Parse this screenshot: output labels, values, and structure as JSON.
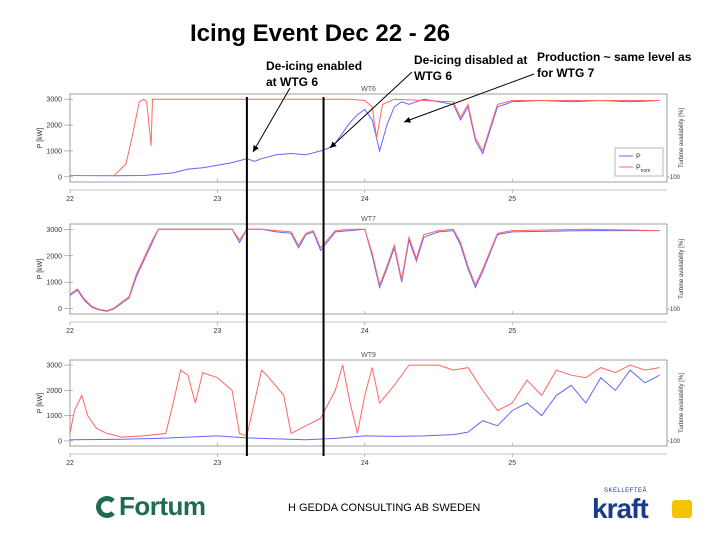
{
  "slide": {
    "title": "Icing Event Dec 22 - 26",
    "footer": "H GEDDA CONSULTING AB SWEDEN",
    "annotations": [
      {
        "lines": [
          "De-icing enabled",
          "at WTG 6"
        ]
      },
      {
        "lines": [
          "De-icing disabled at",
          "WTG 6"
        ]
      },
      {
        "lines": [
          "Production ~ same level as",
          "for WTG 7"
        ]
      }
    ],
    "logos": {
      "left": "Fortum",
      "right_small": "SKELLEFTEÅ",
      "right_big": "kraft"
    },
    "colors": {
      "P": "#6666ff",
      "Pnom": "#ff6666",
      "axis": "#888888",
      "marker": "#000000",
      "fortum": "#1d6c4c",
      "kraft": "#1a3a8a"
    }
  },
  "chart_data": [
    {
      "type": "line",
      "title": "WT6",
      "ylabel": "P [kW]",
      "y2label": "Turbine availability [%]",
      "xlim": [
        22,
        26.05
      ],
      "ylim": [
        -200,
        3200
      ],
      "yticks": [
        0,
        1000,
        2000,
        3000
      ],
      "xticks": [
        22,
        23,
        24,
        25
      ],
      "y2ticks": [
        100
      ],
      "legend": {
        "entries": [
          "P",
          "P_nom"
        ],
        "placement": "lower-right"
      },
      "series": [
        {
          "name": "P",
          "color": "#6666ff",
          "x": [
            22,
            22.3,
            22.5,
            22.7,
            22.8,
            22.9,
            23.0,
            23.1,
            23.2,
            23.25,
            23.3,
            23.4,
            23.5,
            23.6,
            23.7,
            23.75,
            23.8,
            23.85,
            23.9,
            23.95,
            24.0,
            24.05,
            24.1,
            24.15,
            24.2,
            24.25,
            24.3,
            24.35,
            24.4,
            24.5,
            24.6,
            24.65,
            24.7,
            24.75,
            24.8,
            24.9,
            25.0,
            25.2,
            25.4,
            25.6,
            25.8,
            26.0
          ],
          "y": [
            50,
            40,
            50,
            150,
            300,
            350,
            450,
            550,
            700,
            600,
            700,
            850,
            900,
            850,
            1000,
            1100,
            1300,
            1700,
            2100,
            2400,
            2600,
            2200,
            1000,
            2000,
            2700,
            2900,
            2800,
            2900,
            3000,
            2900,
            2800,
            2200,
            2700,
            1400,
            900,
            2700,
            2900,
            2950,
            2900,
            2950,
            2900,
            2950
          ]
        },
        {
          "name": "P_nom",
          "color": "#ff6666",
          "x": [
            22,
            22.3,
            22.38,
            22.42,
            22.47,
            22.5,
            22.52,
            22.55,
            22.56,
            22.6,
            23.0,
            23.5,
            23.9,
            24.0,
            24.05,
            24.08,
            24.12,
            24.2,
            24.4,
            24.6,
            24.65,
            24.7,
            24.75,
            24.8,
            24.9,
            25.0,
            25.5,
            26.0
          ],
          "y": [
            50,
            50,
            500,
            1500,
            2900,
            3000,
            2900,
            1200,
            3000,
            3000,
            3000,
            3000,
            3000,
            2950,
            2700,
            1500,
            2800,
            3000,
            2950,
            2900,
            2300,
            2800,
            1500,
            1000,
            2800,
            2950,
            2950,
            2950
          ]
        }
      ]
    },
    {
      "type": "line",
      "title": "WT7",
      "ylabel": "P [kW]",
      "y2label": "Turbine availability [%]",
      "xlim": [
        22,
        26.05
      ],
      "ylim": [
        -200,
        3200
      ],
      "yticks": [
        0,
        1000,
        2000,
        3000
      ],
      "xticks": [
        22,
        23,
        24,
        25
      ],
      "y2ticks": [
        100
      ],
      "series": [
        {
          "name": "P",
          "color": "#6666ff",
          "x": [
            22,
            22.05,
            22.1,
            22.15,
            22.2,
            22.25,
            22.3,
            22.35,
            22.4,
            22.45,
            22.5,
            22.55,
            22.6,
            22.7,
            23.0,
            23.1,
            23.15,
            23.2,
            23.3,
            23.4,
            23.5,
            23.55,
            23.6,
            23.65,
            23.7,
            23.8,
            23.9,
            24.0,
            24.05,
            24.1,
            24.15,
            24.2,
            24.25,
            24.3,
            24.35,
            24.4,
            24.5,
            24.6,
            24.65,
            24.7,
            24.75,
            24.8,
            24.9,
            25.0,
            25.5,
            26.0
          ],
          "y": [
            500,
            700,
            300,
            50,
            -50,
            -100,
            0,
            200,
            400,
            1200,
            1800,
            2400,
            3000,
            3000,
            3000,
            3000,
            2500,
            3000,
            3000,
            2900,
            2850,
            2300,
            2800,
            2900,
            2200,
            2900,
            2950,
            3000,
            2000,
            800,
            1500,
            2300,
            1000,
            2600,
            1800,
            2700,
            2900,
            2950,
            2400,
            1500,
            800,
            1400,
            2800,
            2900,
            2950,
            2950
          ]
        },
        {
          "name": "P_nom",
          "color": "#ff6666",
          "x": [
            22,
            22.05,
            22.1,
            22.15,
            22.2,
            22.25,
            22.3,
            22.35,
            22.4,
            22.45,
            22.5,
            22.55,
            22.6,
            22.7,
            23.0,
            23.1,
            23.15,
            23.2,
            23.3,
            23.4,
            23.5,
            23.55,
            23.6,
            23.65,
            23.7,
            23.8,
            23.9,
            24.0,
            24.05,
            24.1,
            24.15,
            24.2,
            24.25,
            24.3,
            24.35,
            24.4,
            24.5,
            24.6,
            24.65,
            24.7,
            24.75,
            24.8,
            24.9,
            25.0,
            25.5,
            26.0
          ],
          "y": [
            550,
            750,
            350,
            80,
            -30,
            -80,
            30,
            250,
            450,
            1300,
            1900,
            2500,
            3000,
            3000,
            3000,
            3000,
            2600,
            3000,
            3000,
            2950,
            2900,
            2400,
            2850,
            2950,
            2300,
            2950,
            3000,
            3000,
            2100,
            900,
            1600,
            2400,
            1100,
            2700,
            1900,
            2800,
            2950,
            3000,
            2500,
            1600,
            900,
            1500,
            2850,
            2950,
            3000,
            2950
          ]
        }
      ]
    },
    {
      "type": "line",
      "title": "WT9",
      "ylabel": "P [kW]",
      "y2label": "Turbine availability [%]",
      "xlim": [
        22,
        26.05
      ],
      "ylim": [
        -200,
        3200
      ],
      "yticks": [
        0,
        1000,
        2000,
        3000
      ],
      "xticks": [
        22,
        23,
        24,
        25
      ],
      "y2ticks": [
        100
      ],
      "series": [
        {
          "name": "P",
          "color": "#6666ff",
          "x": [
            22,
            22.3,
            22.6,
            22.8,
            23.0,
            23.2,
            23.4,
            23.6,
            23.8,
            23.9,
            24.0,
            24.2,
            24.4,
            24.6,
            24.7,
            24.8,
            24.9,
            25.0,
            25.1,
            25.2,
            25.3,
            25.4,
            25.5,
            25.6,
            25.7,
            25.8,
            25.9,
            26.0
          ],
          "y": [
            50,
            60,
            100,
            150,
            200,
            120,
            80,
            50,
            100,
            150,
            200,
            180,
            200,
            250,
            350,
            800,
            600,
            1200,
            1500,
            1000,
            1800,
            2200,
            1500,
            2500,
            2000,
            2800,
            2300,
            2600
          ]
        },
        {
          "name": "P_nom",
          "color": "#ff6666",
          "x": [
            22,
            22.03,
            22.08,
            22.12,
            22.18,
            22.25,
            22.35,
            22.5,
            22.65,
            22.7,
            22.75,
            22.8,
            22.85,
            22.9,
            23.0,
            23.1,
            23.15,
            23.2,
            23.3,
            23.35,
            23.45,
            23.5,
            23.6,
            23.7,
            23.8,
            23.85,
            23.9,
            23.95,
            24.0,
            24.05,
            24.1,
            24.2,
            24.3,
            24.4,
            24.5,
            24.6,
            24.7,
            24.8,
            24.9,
            25.0,
            25.1,
            25.2,
            25.3,
            25.4,
            25.5,
            25.6,
            25.7,
            25.8,
            25.9,
            26.0
          ],
          "y": [
            300,
            1200,
            1800,
            1000,
            500,
            300,
            150,
            200,
            300,
            1500,
            2800,
            2600,
            1500,
            2700,
            2500,
            2000,
            300,
            200,
            2800,
            2500,
            1800,
            300,
            600,
            900,
            2000,
            3000,
            1500,
            300,
            1800,
            2900,
            1500,
            2200,
            3000,
            3000,
            3000,
            2800,
            2900,
            2000,
            1200,
            1500,
            2400,
            1800,
            2800,
            2600,
            2500,
            2900,
            2700,
            3000,
            2800,
            2900
          ]
        }
      ]
    }
  ]
}
